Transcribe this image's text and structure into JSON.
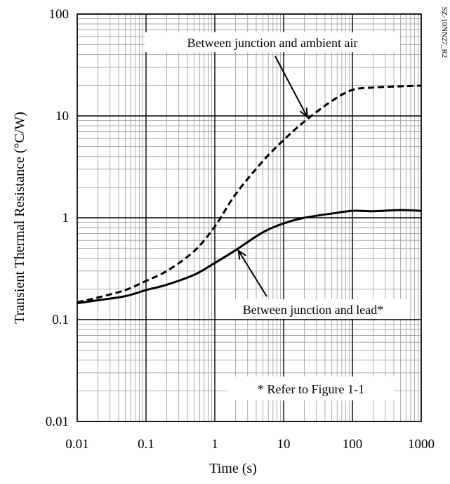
{
  "chart_data": {
    "type": "line",
    "title": "",
    "xlabel": "Time (s)",
    "ylabel": "Transient Thermal Resistance (°C/W)",
    "xscale": "log",
    "yscale": "log",
    "xlim": [
      0.01,
      1000
    ],
    "ylim": [
      0.01,
      100
    ],
    "grid": true,
    "x_ticks": [
      {
        "value": 0.01,
        "label": "0.01"
      },
      {
        "value": 0.1,
        "label": "0.1"
      },
      {
        "value": 1,
        "label": "1"
      },
      {
        "value": 10,
        "label": "10"
      },
      {
        "value": 100,
        "label": "100"
      },
      {
        "value": 1000,
        "label": "1000"
      }
    ],
    "y_ticks": [
      {
        "value": 0.01,
        "label": "0.01"
      },
      {
        "value": 0.1,
        "label": "0.1"
      },
      {
        "value": 1,
        "label": "1"
      },
      {
        "value": 10,
        "label": "10"
      },
      {
        "value": 100,
        "label": "100"
      }
    ],
    "series": [
      {
        "label": "Between junction and ambient air",
        "style": "dashed",
        "x": [
          0.01,
          0.02,
          0.05,
          0.1,
          0.2,
          0.5,
          1,
          2,
          5,
          10,
          20,
          50,
          100,
          200,
          500,
          1000
        ],
        "y": [
          0.148,
          0.165,
          0.195,
          0.24,
          0.3,
          0.47,
          0.82,
          1.7,
          3.6,
          5.8,
          8.8,
          14.0,
          18.0,
          19.0,
          19.5,
          19.8
        ]
      },
      {
        "label": "Between junction and lead*",
        "style": "solid",
        "x": [
          0.01,
          0.02,
          0.05,
          0.1,
          0.2,
          0.5,
          1,
          2,
          5,
          10,
          20,
          50,
          100,
          200,
          500,
          1000
        ],
        "y": [
          0.145,
          0.155,
          0.17,
          0.195,
          0.22,
          0.275,
          0.36,
          0.48,
          0.72,
          0.88,
          1.0,
          1.1,
          1.17,
          1.16,
          1.19,
          1.17
        ]
      }
    ],
    "annotations": [
      {
        "text": "Between junction and ambient air",
        "arrow_to": {
          "x": 22,
          "y": 9.2
        }
      },
      {
        "text": "Between junction and lead*",
        "arrow_to": {
          "x": 2.2,
          "y": 0.5
        }
      },
      {
        "text": "* Refer to Figure 1-1"
      }
    ],
    "corner_code": "SZ-10NN27_R2"
  }
}
